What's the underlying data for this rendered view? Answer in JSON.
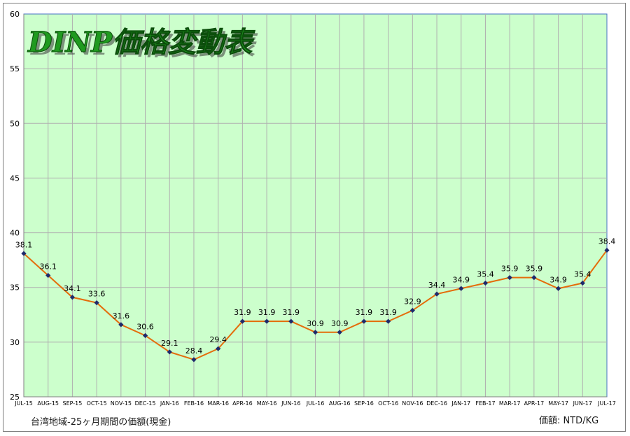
{
  "chart_data": {
    "type": "line",
    "title": "DINP価格変動表",
    "x": [
      "JUL-15",
      "AUG-15",
      "SEP-15",
      "OCT-15",
      "NOV-15",
      "DEC-15",
      "JAN-16",
      "FEB-16",
      "MAR-16",
      "APR-16",
      "MAY-16",
      "JUN-16",
      "JUL-16",
      "AUG-16",
      "SEP-16",
      "OCT-16",
      "NOV-16",
      "DEC-16",
      "JAN-17",
      "FEB-17",
      "MAR-17",
      "APR-17",
      "MAY-17",
      "JUN-17",
      "JUL-17"
    ],
    "series": [
      {
        "values": [
          38.1,
          36.1,
          34.1,
          33.6,
          31.6,
          30.6,
          29.1,
          28.4,
          29.4,
          31.9,
          31.9,
          31.9,
          30.9,
          30.9,
          31.9,
          31.9,
          32.9,
          34.4,
          34.9,
          35.4,
          35.9,
          35.9,
          34.9,
          35.4,
          38.4
        ]
      }
    ],
    "ylim": [
      25,
      60
    ],
    "yticks": [
      25,
      30,
      35,
      40,
      45,
      50,
      55,
      60
    ],
    "grid": true,
    "colors": {
      "plot_bg": "#ccffcc",
      "grid": "#b0b0b0",
      "line": "#e46c0a",
      "marker": "#1f2a6b",
      "title": "#1f9a1f"
    },
    "footnote_left": "台湾地域-25ヶ月期間の価額(現金)",
    "footnote_right": "価額: NTD/KG"
  }
}
